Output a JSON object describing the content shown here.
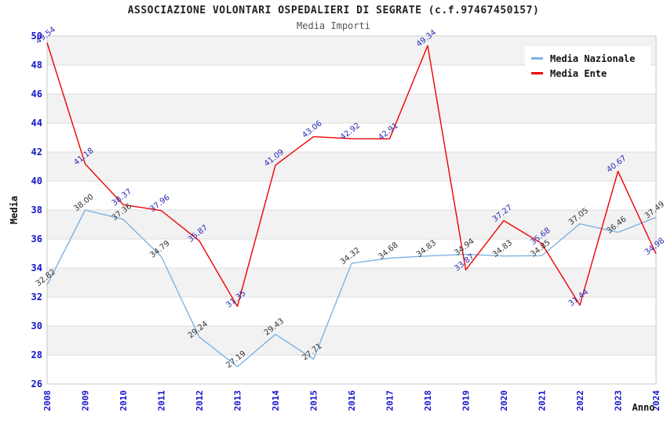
{
  "page": {
    "background": "#ffffff"
  },
  "chart_data": {
    "type": "line",
    "title": "ASSOCIAZIONE VOLONTARI OSPEDALIERI DI SEGRATE (c.f.97467450157)",
    "subtitle": "Media Importi",
    "xlabel": "Anno",
    "ylabel": "Media",
    "x": [
      2008,
      2009,
      2010,
      2011,
      2012,
      2013,
      2014,
      2015,
      2016,
      2017,
      2018,
      2019,
      2020,
      2021,
      2022,
      2023,
      2024
    ],
    "ylim": [
      26,
      50
    ],
    "ytick_step": 2,
    "grid": "horizontal gridlines with alternating gray bands",
    "legend_position": "top-right",
    "series": [
      {
        "name": "Media Nazionale",
        "color": "#7db3e2",
        "label_color": "#333333",
        "values": [
          32.82,
          38.0,
          37.36,
          34.79,
          29.24,
          27.19,
          29.43,
          27.71,
          34.32,
          34.68,
          34.83,
          34.94,
          34.83,
          34.85,
          37.05,
          36.46,
          37.49
        ]
      },
      {
        "name": "Media Ente",
        "color": "#ee0000",
        "label_color": "#2a2ab8",
        "values": [
          49.54,
          41.18,
          38.37,
          37.96,
          35.87,
          31.35,
          41.09,
          43.06,
          42.92,
          42.91,
          49.34,
          33.87,
          37.27,
          35.68,
          31.44,
          40.67,
          34.98
        ]
      }
    ],
    "style": {
      "tick_color": "#1515cc",
      "band_color": "#f2f2f2",
      "gridline_color": "#dcdcdc",
      "plot_border_color": "#c9c9c9",
      "axis_title_color": "#111111"
    }
  }
}
